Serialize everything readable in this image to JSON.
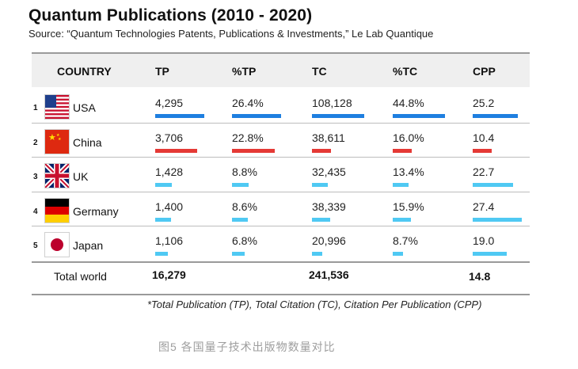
{
  "title": "Quantum Publications (2010 - 2020)",
  "source": "Source: “Quantum Technologies Patents, Publications & Investments,” Le Lab Quantique",
  "colors": {
    "first": "#1e7fe0",
    "second": "#e53935",
    "rest": "#4fc9f3"
  },
  "chart_data": {
    "type": "table",
    "columns": [
      "COUNTRY",
      "TP",
      "%TP",
      "TC",
      "%TC",
      "CPP"
    ],
    "rows": [
      {
        "rank": "1",
        "country": "USA",
        "flag": "usa-flag-icon",
        "tp": 4295,
        "tp_text": "4,295",
        "ptp": 26.4,
        "ptp_text": "26.4%",
        "tc": 108128,
        "tc_text": "108,128",
        "ptc": 44.8,
        "ptc_text": "44.8%",
        "cpp": 25.2,
        "cpp_text": "25.2"
      },
      {
        "rank": "2",
        "country": "China",
        "flag": "china-flag-icon",
        "tp": 3706,
        "tp_text": "3,706",
        "ptp": 22.8,
        "ptp_text": "22.8%",
        "tc": 38611,
        "tc_text": "38,611",
        "ptc": 16.0,
        "ptc_text": "16.0%",
        "cpp": 10.4,
        "cpp_text": "10.4"
      },
      {
        "rank": "3",
        "country": "UK",
        "flag": "uk-flag-icon",
        "tp": 1428,
        "tp_text": "1,428",
        "ptp": 8.8,
        "ptp_text": "8.8%",
        "tc": 32435,
        "tc_text": "32,435",
        "ptc": 13.4,
        "ptc_text": "13.4%",
        "cpp": 22.7,
        "cpp_text": "22.7"
      },
      {
        "rank": "4",
        "country": "Germany",
        "flag": "germany-flag-icon",
        "tp": 1400,
        "tp_text": "1,400",
        "ptp": 8.6,
        "ptp_text": "8.6%",
        "tc": 38339,
        "tc_text": "38,339",
        "ptc": 15.9,
        "ptc_text": "15.9%",
        "cpp": 27.4,
        "cpp_text": "27.4"
      },
      {
        "rank": "5",
        "country": "Japan",
        "flag": "japan-flag-icon",
        "tp": 1106,
        "tp_text": "1,106",
        "ptp": 6.8,
        "ptp_text": "6.8%",
        "tc": 20996,
        "tc_text": "20,996",
        "ptc": 8.7,
        "ptc_text": "8.7%",
        "cpp": 19.0,
        "cpp_text": "19.0"
      }
    ],
    "total": {
      "label": "Total world",
      "tp": "16,279",
      "tc": "241,536",
      "cpp": "14.8"
    }
  },
  "footnote": "*Total Publication (TP), Total Citation (TC), Citation Per Publication (CPP)",
  "caption": "图5  各国量子技术出版物数量对比"
}
